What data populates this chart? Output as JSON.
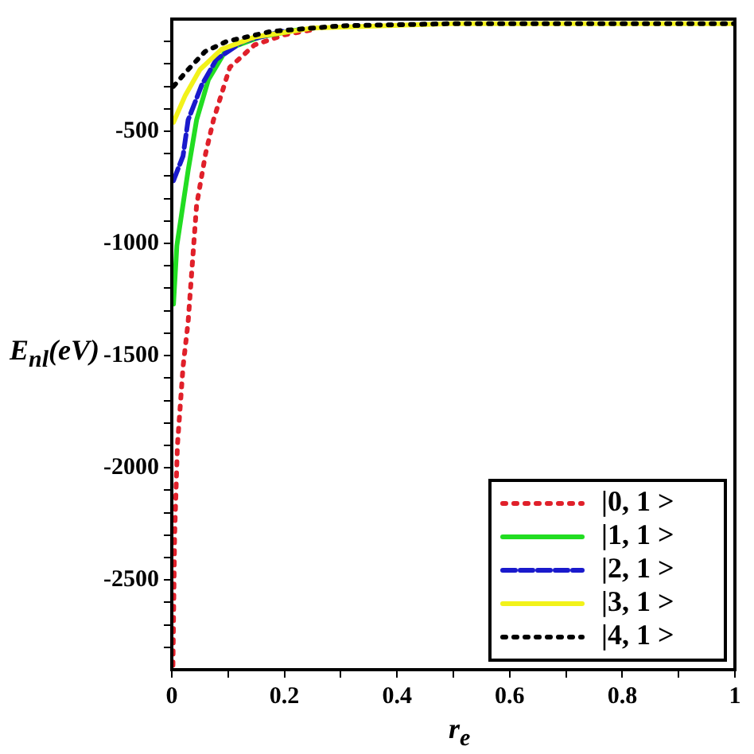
{
  "chart_data": {
    "type": "line",
    "xlabel": "r$_{e}$",
    "ylabel": "E$_{nl}$(eV)",
    "xlim": [
      0,
      1
    ],
    "ylim": [
      -2900,
      0
    ],
    "xticks": [
      0,
      {
        "value": 0.1,
        "label": null
      },
      0.2,
      {
        "value": 0.3,
        "label": null
      },
      0.4,
      {
        "value": 0.5,
        "label": null
      },
      0.6,
      {
        "value": 0.7,
        "label": null
      },
      0.8,
      {
        "value": 0.9,
        "label": null
      },
      1
    ],
    "yticks": [
      {
        "value": -2800,
        "label": null
      },
      {
        "value": -2700,
        "label": null
      },
      {
        "value": -2600,
        "label": null
      },
      -2500,
      {
        "value": -2400,
        "label": null
      },
      {
        "value": -2300,
        "label": null
      },
      {
        "value": -2200,
        "label": null
      },
      {
        "value": -2100,
        "label": null
      },
      -2000,
      {
        "value": -1900,
        "label": null
      },
      {
        "value": -1800,
        "label": null
      },
      {
        "value": -1700,
        "label": null
      },
      {
        "value": -1600,
        "label": null
      },
      -1500,
      {
        "value": -1400,
        "label": null
      },
      {
        "value": -1300,
        "label": null
      },
      {
        "value": -1200,
        "label": null
      },
      {
        "value": -1100,
        "label": null
      },
      -1000,
      {
        "value": -900,
        "label": null
      },
      {
        "value": -800,
        "label": null
      },
      {
        "value": -700,
        "label": null
      },
      {
        "value": -600,
        "label": null
      },
      -500,
      {
        "value": -400,
        "label": null
      },
      {
        "value": -300,
        "label": null
      },
      {
        "value": -200,
        "label": null
      },
      {
        "value": -100,
        "label": null
      }
    ],
    "grid": false,
    "legend": "bottom right",
    "marker": "none",
    "series": [
      {
        "name": "|0, 1 >",
        "color": "#e0202a",
        "line_style": "dotted",
        "x": [
          0.002,
          0.005,
          0.01,
          0.02,
          0.029,
          0.044,
          0.06,
          0.074,
          0.103,
          0.147,
          0.2,
          0.256
        ],
        "values": [
          -2880,
          -2300,
          -1900,
          -1550,
          -1350,
          -830,
          -600,
          -450,
          -215,
          -115,
          -70,
          -45
        ]
      },
      {
        "name": "|1, 1 >",
        "color": "#22dd22",
        "line_style": "solid",
        "x": [
          0.003,
          0.009,
          0.029,
          0.044,
          0.065,
          0.097,
          0.156,
          0.23
        ],
        "values": [
          -1270,
          -1010,
          -675,
          -450,
          -270,
          -135,
          -80,
          -45
        ]
      },
      {
        "name": "|2, 1 >",
        "color": "#1a1acc",
        "line_style": "dashed",
        "x": [
          0.003,
          0.02,
          0.029,
          0.053,
          0.079,
          0.126,
          0.197
        ],
        "values": [
          -720,
          -610,
          -450,
          -295,
          -180,
          -100,
          -55
        ]
      },
      {
        "name": "|3, 1 >",
        "color": "#f2f21a",
        "line_style": "solid",
        "x": [
          0.003,
          0.024,
          0.05,
          0.088,
          0.147,
          0.25,
          0.5,
          1
        ],
        "values": [
          -460,
          -340,
          -225,
          -135,
          -80,
          -40,
          -20,
          -20
        ]
      },
      {
        "name": "|4, 1 >",
        "color": "#000000",
        "line_style": "dotted",
        "x": [
          0.003,
          0.029,
          0.059,
          0.097,
          0.176,
          0.3,
          0.5,
          1
        ],
        "values": [
          -300,
          -225,
          -145,
          -100,
          -55,
          -30,
          -20,
          -20
        ]
      }
    ]
  }
}
